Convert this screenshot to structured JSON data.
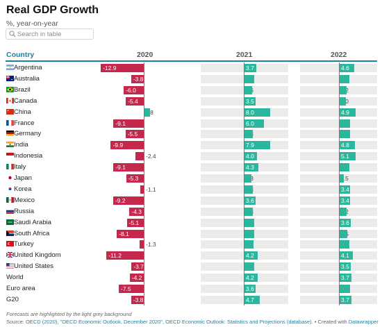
{
  "title": "Real GDP Growth",
  "subtitle": "%, year-on-year",
  "search": {
    "placeholder": "Search in table"
  },
  "columns": {
    "country": "Country",
    "y2020": "2020",
    "y2021": "2021",
    "y2022": "2022"
  },
  "footnote": "Forecasts are highlighted by the light grey background",
  "source": {
    "prefix": "Source: ",
    "link1": "OECD (2020), \"OECD Economic Outlook, December 2020\", OECD Economic Outlook: Statistics and Projections (database).",
    "middle": " • Created with ",
    "link2": "Datawrapper"
  },
  "colors": {
    "negative": "#c5284c",
    "positive": "#2bb79e",
    "forecast_background": "#ebebeb",
    "accent": "#1d81a2"
  },
  "chart_data": {
    "type": "table",
    "highlighted_columns": [
      "2021",
      "2022"
    ],
    "rows": [
      {
        "country": "Argentina",
        "flag": "argentina",
        "v2020": -12.9,
        "v2021": 3.7,
        "v2022": 4.6,
        "l2020": "-12.9",
        "l2021": "3.7",
        "l2022": "4.6"
      },
      {
        "country": "Australia",
        "flag": "australia",
        "v2020": -3.8,
        "v2021": 3.2,
        "v2022": 3.1,
        "l2020": "-3.8",
        "l2021": "3.2",
        "l2022": "3.1"
      },
      {
        "country": "Brazil",
        "flag": "brazil",
        "v2020": -6.0,
        "v2021": 2.6,
        "v2022": 2.2,
        "l2020": "-6.0",
        "l2021": "2.6",
        "l2022": "2.2"
      },
      {
        "country": "Canada",
        "flag": "canada",
        "v2020": -5.4,
        "v2021": 3.5,
        "v2022": 2.0,
        "l2020": "-5.4",
        "l2021": "3.5",
        "l2022": "2.0"
      },
      {
        "country": "China",
        "flag": "china",
        "v2020": 1.8,
        "v2021": 8.0,
        "v2022": 4.9,
        "l2020": "1.8",
        "l2021": "8.0",
        "l2022": "4.9"
      },
      {
        "country": "France",
        "flag": "france",
        "v2020": -9.1,
        "v2021": 6.0,
        "v2022": 3.3,
        "l2020": "-9.1",
        "l2021": "6.0",
        "l2022": "3.3"
      },
      {
        "country": "Germany",
        "flag": "germany",
        "v2020": -5.5,
        "v2021": 2.8,
        "v2022": 3.3,
        "l2020": "-5.5",
        "l2021": "2.8",
        "l2022": "3.3"
      },
      {
        "country": "India",
        "flag": "india",
        "v2020": -9.9,
        "v2021": 7.9,
        "v2022": 4.8,
        "l2020": "-9.9",
        "l2021": "7.9",
        "l2022": "4.8"
      },
      {
        "country": "Indonesia",
        "flag": "indonesia",
        "v2020": -2.4,
        "v2021": 4.0,
        "v2022": 5.1,
        "l2020": "-2.4",
        "l2021": "4.0",
        "l2022": "5.1"
      },
      {
        "country": "Italy",
        "flag": "italy",
        "v2020": -9.1,
        "v2021": 4.3,
        "v2022": 3.2,
        "l2020": "-9.1",
        "l2021": "4.3",
        "l2022": "3.2"
      },
      {
        "country": "Japan",
        "flag": "japan",
        "v2020": -5.3,
        "v2021": 2.3,
        "v2022": 1.5,
        "l2020": "-5.3",
        "l2021": "2.3",
        "l2022": "1.5"
      },
      {
        "country": "Korea",
        "flag": "korea",
        "v2020": -1.1,
        "v2021": 2.8,
        "v2022": 3.4,
        "l2020": "-1.1",
        "l2021": "2.8",
        "l2022": "3.4"
      },
      {
        "country": "Mexico",
        "flag": "mexico",
        "v2020": -9.2,
        "v2021": 3.6,
        "v2022": 3.4,
        "l2020": "-9.2",
        "l2021": "3.6",
        "l2022": "3.4"
      },
      {
        "country": "Russia",
        "flag": "russia",
        "v2020": -4.3,
        "v2021": 2.8,
        "v2022": 2.2,
        "l2020": "-4.3",
        "l2021": "2.8",
        "l2022": "2.2"
      },
      {
        "country": "Saudi Arabia",
        "flag": "saudi-arabia",
        "v2020": -5.1,
        "v2021": 3.2,
        "v2022": 3.6,
        "l2020": "-5.1",
        "l2021": "3.2",
        "l2022": "3.6"
      },
      {
        "country": "South Africa",
        "flag": "south-africa",
        "v2020": -8.1,
        "v2021": 3.1,
        "v2022": 2.5,
        "l2020": "-8.1",
        "l2021": "3.1",
        "l2022": "2.5"
      },
      {
        "country": "Turkey",
        "flag": "turkey",
        "v2020": -1.3,
        "v2021": 2.9,
        "v2022": 3.2,
        "l2020": "-1.3",
        "l2021": "2.9",
        "l2022": "3.2"
      },
      {
        "country": "United Kingdom",
        "flag": "united-kingdom",
        "v2020": -11.2,
        "v2021": 4.2,
        "v2022": 4.1,
        "l2020": "-11.2",
        "l2021": "4.2",
        "l2022": "4.1"
      },
      {
        "country": "United States",
        "flag": "united-states",
        "v2020": -3.7,
        "v2021": 3.2,
        "v2022": 3.5,
        "l2020": "-3.7",
        "l2021": "3.2",
        "l2022": "3.5"
      },
      {
        "country": "World",
        "flag": "",
        "v2020": -4.2,
        "v2021": 4.2,
        "v2022": 3.7,
        "l2020": "-4.2",
        "l2021": "4.2",
        "l2022": "3.7"
      },
      {
        "country": "Euro area",
        "flag": "",
        "v2020": -7.5,
        "v2021": 3.6,
        "v2022": 3.3,
        "l2020": "-7.5",
        "l2021": "3.6",
        "l2022": "3.3"
      },
      {
        "country": "G20",
        "flag": "",
        "v2020": -3.8,
        "v2021": 4.7,
        "v2022": 3.7,
        "l2020": "-3.8",
        "l2021": "4.7",
        "l2022": "3.7"
      }
    ]
  }
}
